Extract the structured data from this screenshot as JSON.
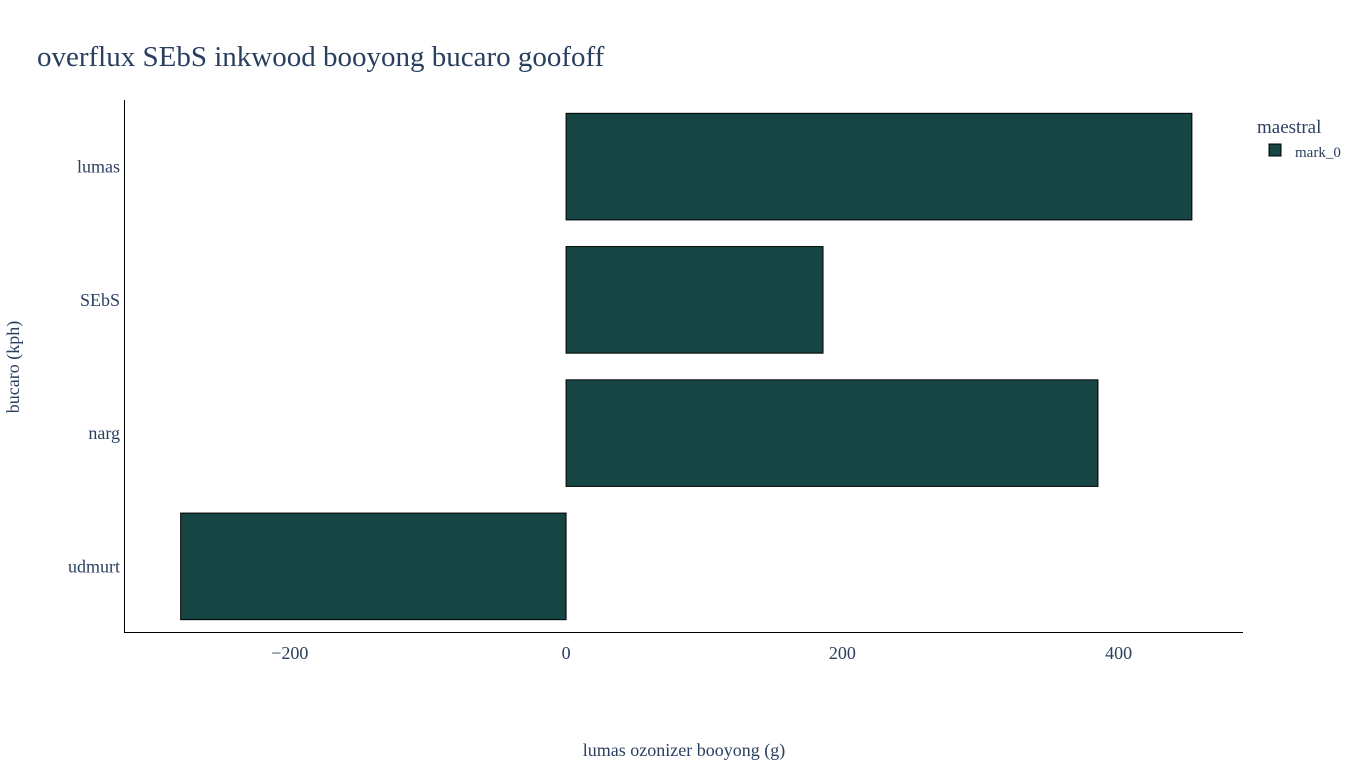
{
  "chart_data": {
    "type": "bar",
    "orientation": "horizontal",
    "title": "overflux SEbS inkwood booyong bucaro goofoff",
    "xlabel": "lumas ozonizer booyong (g)",
    "ylabel": "bucaro (kph)",
    "categories": [
      "udmurt",
      "narg",
      "SEbS",
      "lumas"
    ],
    "series": [
      {
        "name": "mark_0",
        "values": [
          -279,
          385,
          186,
          453
        ],
        "color": "#164544"
      }
    ],
    "xlim": [
      -320,
      490
    ],
    "xticks": [
      -200,
      0,
      200,
      400
    ],
    "xtick_labels": [
      "−200",
      "0",
      "200",
      "400"
    ],
    "grid": false,
    "legend": {
      "title": "maestral",
      "placement": "top-right"
    },
    "colors": {
      "text": "#2a3f5f",
      "axis": "#000000",
      "bar_edge": "#000000",
      "background": "#ffffff"
    }
  }
}
